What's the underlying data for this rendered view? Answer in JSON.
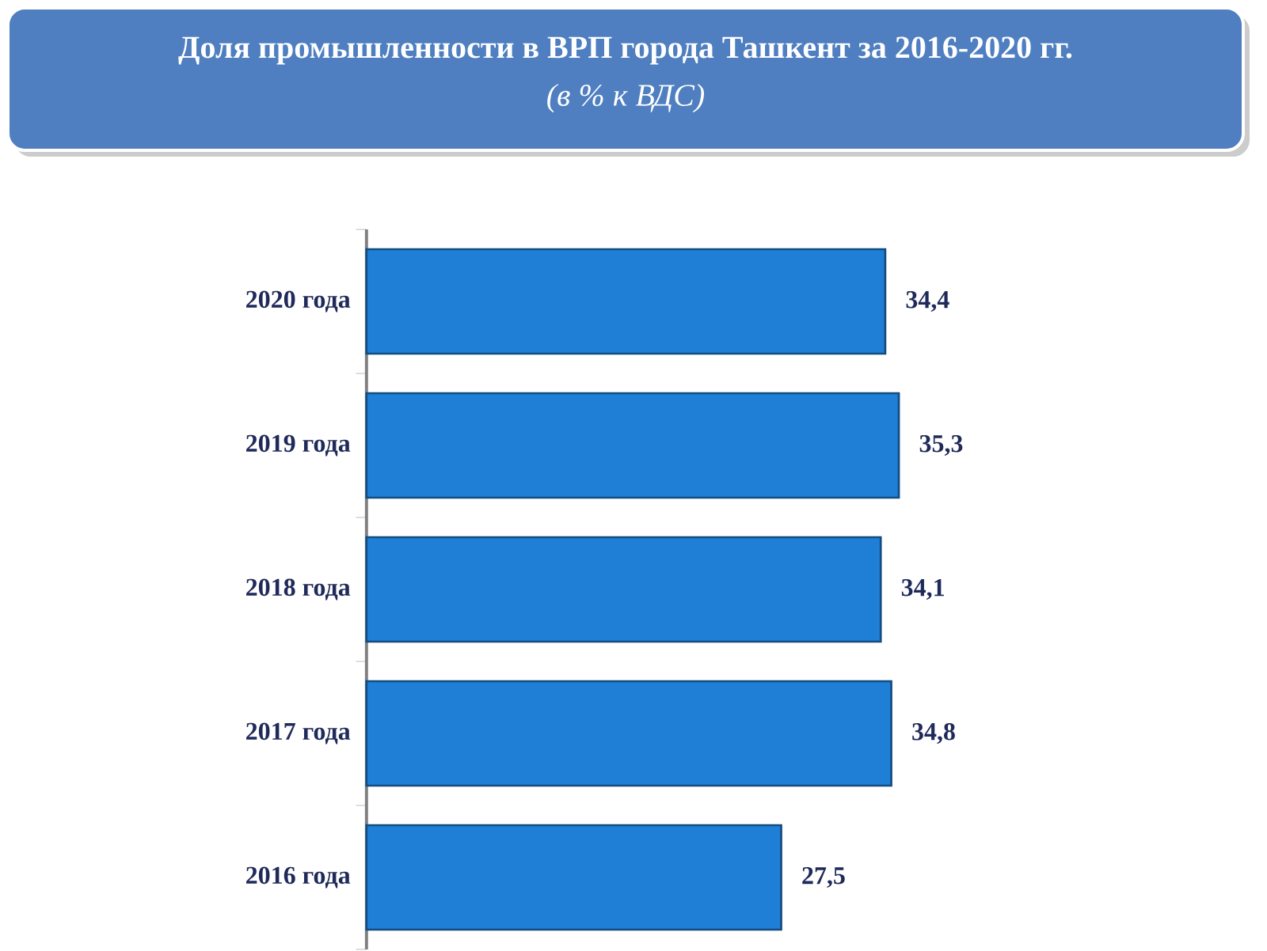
{
  "chart_data": {
    "type": "bar",
    "orientation": "horizontal",
    "title": "Доля промышленности в ВРП города Ташкент за 2016-2020 гг.",
    "subtitle": "(в % к ВДС)",
    "categories": [
      "2020 года",
      "2019 года",
      "2018 года",
      "2017 года",
      "2016 года"
    ],
    "values": [
      34.4,
      35.3,
      34.1,
      34.8,
      27.5
    ],
    "value_labels": [
      "34,4",
      "35,3",
      "34,1",
      "34,8",
      "27,5"
    ],
    "color": "#1f7fd6"
  }
}
